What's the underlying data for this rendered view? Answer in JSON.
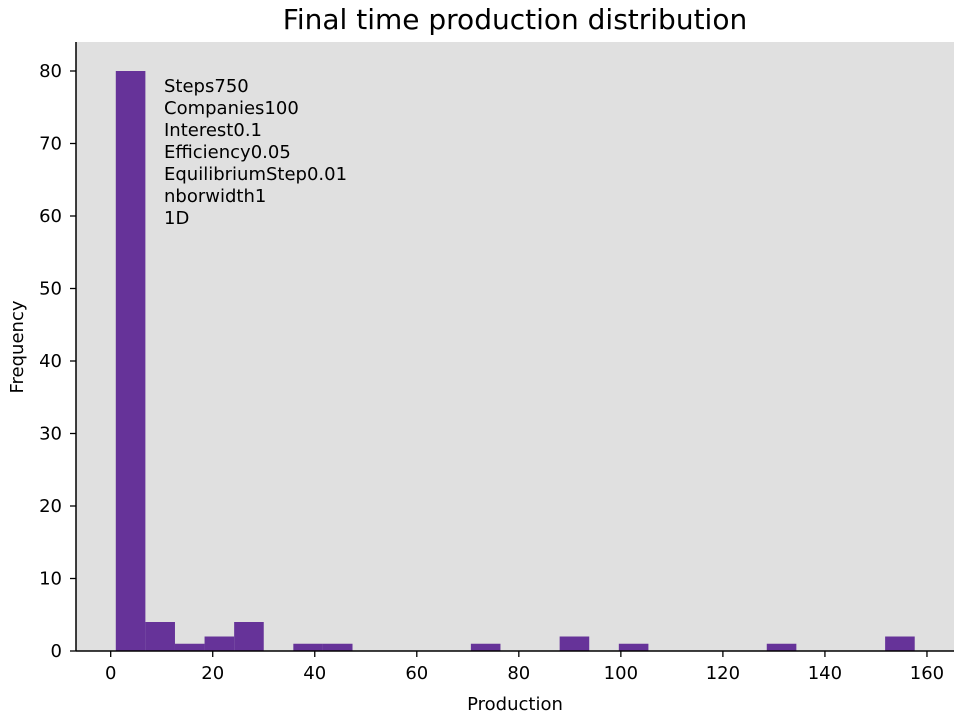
{
  "chart_data": {
    "type": "bar",
    "title": "Final time production distribution",
    "xlabel": "Production",
    "ylabel": "Frequency",
    "xlim": [
      -6.8,
      165.3
    ],
    "ylim": [
      0,
      84
    ],
    "xticks": [
      0,
      20,
      40,
      60,
      80,
      100,
      120,
      140,
      160
    ],
    "yticks": [
      0,
      10,
      20,
      30,
      40,
      50,
      60,
      70,
      80
    ],
    "grid": false,
    "bar_color": "#663399",
    "plot_bg": "#e0e0e0",
    "bins": [
      {
        "x0": 1.0,
        "x1": 6.8,
        "value": 80
      },
      {
        "x0": 6.8,
        "x1": 12.6,
        "value": 4
      },
      {
        "x0": 12.6,
        "x1": 18.4,
        "value": 1
      },
      {
        "x0": 18.4,
        "x1": 24.2,
        "value": 2
      },
      {
        "x0": 24.2,
        "x1": 30.0,
        "value": 4
      },
      {
        "x0": 35.8,
        "x1": 41.6,
        "value": 1
      },
      {
        "x0": 41.6,
        "x1": 47.4,
        "value": 1
      },
      {
        "x0": 70.6,
        "x1": 76.4,
        "value": 1
      },
      {
        "x0": 88.0,
        "x1": 93.8,
        "value": 2
      },
      {
        "x0": 99.6,
        "x1": 105.4,
        "value": 1
      },
      {
        "x0": 128.6,
        "x1": 134.4,
        "value": 1
      },
      {
        "x0": 151.8,
        "x1": 157.6,
        "value": 2
      }
    ],
    "annotations": [
      "Steps750",
      "Companies100",
      "Interest0.1",
      "Efficiency0.05",
      "EquilibriumStep0.01",
      "nborwidth1",
      "1D"
    ]
  }
}
